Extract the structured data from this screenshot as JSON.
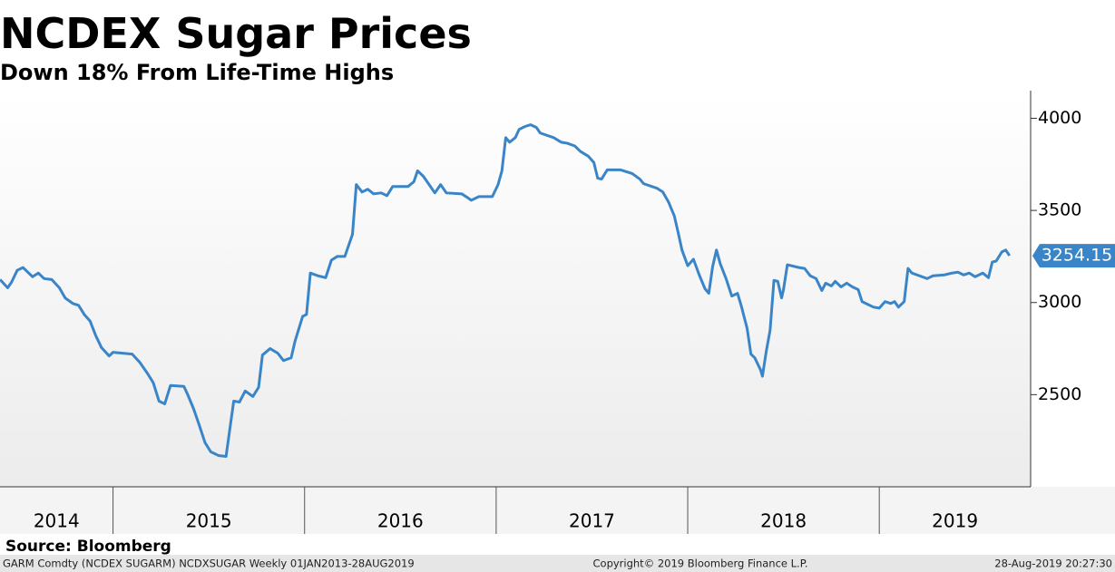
{
  "chart_data": {
    "type": "line",
    "title": "NCDEX Sugar Prices",
    "subtitle": "Down 18% From Life-Time Highs",
    "source": "Source: Bloomberg",
    "footer": [
      "GARM Comdty (NCDEX SUGARM) NCDXSUGAR  Weekly 01JAN2013-28AUG2019",
      "Copyright© 2019 Bloomberg Finance L.P.",
      "28-Aug-2019 20:27:30"
    ],
    "color": "#3a85c8",
    "x": [
      2014.41,
      2014.45,
      2014.47,
      2014.5,
      2014.53,
      2014.58,
      2014.61,
      2014.64,
      2014.68,
      2014.72,
      2014.75,
      2014.79,
      2014.82,
      2014.85,
      2014.88,
      2014.91,
      2014.94,
      2014.98,
      2015.0,
      2015.1,
      2015.14,
      2015.18,
      2015.21,
      2015.24,
      2015.27,
      2015.3,
      2015.37,
      2015.39,
      2015.42,
      2015.45,
      2015.48,
      2015.51,
      2015.55,
      2015.59,
      2015.63,
      2015.66,
      2015.69,
      2015.73,
      2015.76,
      2015.78,
      2015.82,
      2015.86,
      2015.89,
      2015.93,
      2015.95,
      2015.99,
      2016.01,
      2016.03,
      2016.07,
      2016.11,
      2016.14,
      2016.17,
      2016.21,
      2016.25,
      2016.27,
      2016.3,
      2016.33,
      2016.36,
      2016.4,
      2016.43,
      2016.46,
      2016.54,
      2016.57,
      2016.59,
      2016.62,
      2016.65,
      2016.68,
      2016.71,
      2016.74,
      2016.82,
      2016.85,
      2016.87,
      2016.91,
      2016.98,
      2017.01,
      2017.03,
      2017.05,
      2017.07,
      2017.1,
      2017.12,
      2017.15,
      2017.18,
      2017.21,
      2017.23,
      2017.3,
      2017.34,
      2017.37,
      2017.41,
      2017.44,
      2017.48,
      2017.51,
      2017.53,
      2017.55,
      2017.58,
      2017.65,
      2017.71,
      2017.75,
      2017.77,
      2017.84,
      2017.87,
      2017.9,
      2017.93,
      2017.95,
      2017.97,
      2018.0,
      2018.03,
      2018.06,
      2018.09,
      2018.11,
      2018.13,
      2018.15,
      2018.17,
      2018.2,
      2018.23,
      2018.26,
      2018.28,
      2018.31,
      2018.33,
      2018.35,
      2018.38,
      2018.39,
      2018.41,
      2018.43,
      2018.45,
      2018.47,
      2018.49,
      2018.5,
      2018.52,
      2018.58,
      2018.61,
      2018.64,
      2018.67,
      2018.7,
      2018.72,
      2018.75,
      2018.77,
      2018.8,
      2018.83,
      2018.86,
      2018.89,
      2018.91,
      2018.97,
      2019.0,
      2019.03,
      2019.06,
      2019.08,
      2019.1,
      2019.13,
      2019.15,
      2019.17,
      2019.21,
      2019.25,
      2019.28,
      2019.34,
      2019.38,
      2019.41,
      2019.44,
      2019.47,
      2019.5,
      2019.54,
      2019.57,
      2019.59,
      2019.61,
      2019.64,
      2019.66,
      2019.68
    ],
    "values": [
      3125,
      3080,
      3110,
      3175,
      3190,
      3140,
      3160,
      3130,
      3125,
      3080,
      3025,
      2995,
      2985,
      2935,
      2900,
      2820,
      2755,
      2710,
      2730,
      2720,
      2675,
      2615,
      2565,
      2465,
      2450,
      2550,
      2545,
      2500,
      2425,
      2335,
      2240,
      2190,
      2170,
      2165,
      2465,
      2460,
      2520,
      2490,
      2540,
      2715,
      2750,
      2725,
      2685,
      2700,
      2790,
      2925,
      2935,
      3160,
      3145,
      3135,
      3230,
      3250,
      3250,
      3370,
      3640,
      3600,
      3615,
      3590,
      3595,
      3580,
      3630,
      3630,
      3655,
      3715,
      3685,
      3640,
      3595,
      3640,
      3595,
      3590,
      3570,
      3555,
      3575,
      3575,
      3640,
      3715,
      3895,
      3870,
      3895,
      3940,
      3955,
      3965,
      3950,
      3920,
      3895,
      3870,
      3865,
      3850,
      3820,
      3795,
      3760,
      3675,
      3670,
      3720,
      3720,
      3700,
      3670,
      3645,
      3620,
      3600,
      3545,
      3470,
      3380,
      3285,
      3200,
      3235,
      3150,
      3075,
      3050,
      3195,
      3285,
      3210,
      3130,
      3035,
      3050,
      2980,
      2860,
      2720,
      2700,
      2635,
      2600,
      2735,
      2850,
      3120,
      3115,
      3025,
      3070,
      3205,
      3190,
      3185,
      3145,
      3130,
      3065,
      3105,
      3090,
      3115,
      3085,
      3105,
      3085,
      3070,
      3005,
      2975,
      2970,
      3005,
      2995,
      3005,
      2975,
      3005,
      3185,
      3160,
      3145,
      3130,
      3145,
      3150,
      3160,
      3165,
      3150,
      3160,
      3140,
      3160,
      3135,
      3220,
      3225,
      3275,
      3285,
      3254.15
    ],
    "last_value": 3254.15,
    "xlim": [
      2014.41,
      2019.79
    ],
    "xticks": [
      2014,
      2015,
      2016,
      2017,
      2018,
      2019
    ],
    "ylim": [
      2000,
      4150
    ],
    "yticks": [
      2500,
      3000,
      3500,
      4000
    ]
  }
}
